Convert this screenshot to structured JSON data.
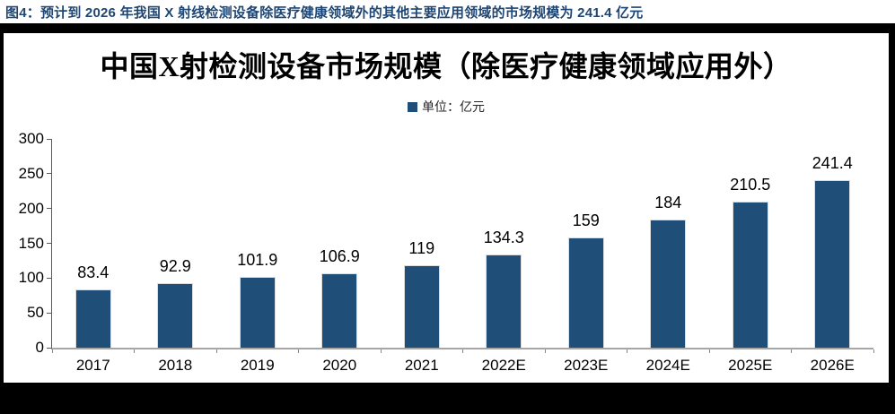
{
  "caption": "图4：预计到 2026 年我国 X 射线检测设备除医疗健康领域外的其他主要应用领域的市场规模为 241.4 亿元",
  "chart": {
    "title": "中国X射检测设备市场规模（除医疗健康领域应用外）",
    "legend": {
      "label": "单位：亿元",
      "marker_color": "#1f4e79"
    }
  },
  "chart_data": {
    "type": "bar",
    "title": "中国X射检测设备市场规模（除医疗健康领域应用外）",
    "categories": [
      "2017",
      "2018",
      "2019",
      "2020",
      "2021",
      "2022E",
      "2023E",
      "2024E",
      "2025E",
      "2026E"
    ],
    "values": [
      83.4,
      92.9,
      101.9,
      106.9,
      119,
      134.3,
      159,
      184,
      210.5,
      241.4
    ],
    "value_labels": [
      "83.4",
      "92.9",
      "101.9",
      "106.9",
      "119",
      "134.3",
      "159",
      "184",
      "210.5",
      "241.4"
    ],
    "legend": [
      "单位：亿元"
    ],
    "legend_position": "top-center",
    "xlabel": "",
    "ylabel": "",
    "ylim": [
      0,
      300
    ],
    "yticks": [
      0,
      50,
      100,
      150,
      200,
      250,
      300
    ],
    "grid": false,
    "bar_color": "#1f4e79"
  },
  "colors": {
    "caption_text": "#1e4673",
    "bar": "#1f4e79",
    "frame_border": "#000000",
    "y_axis_line": "#595959",
    "x_axis_line": "#a6a6a6"
  }
}
